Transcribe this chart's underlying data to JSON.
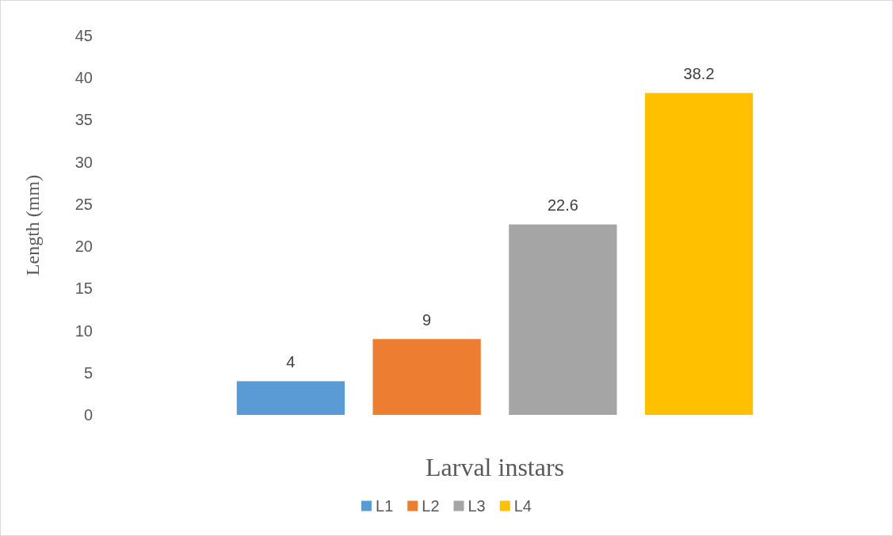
{
  "chart_data": {
    "type": "bar",
    "xlabel": "Larval instars",
    "ylabel": "Length (mm)",
    "categories": [
      null
    ],
    "series": [
      {
        "name": "L1",
        "color": "#5b9bd5",
        "values": [
          4
        ]
      },
      {
        "name": "L2",
        "color": "#ed7d31",
        "values": [
          9
        ]
      },
      {
        "name": "L3",
        "color": "#a5a5a5",
        "values": [
          22.6
        ]
      },
      {
        "name": "L4",
        "color": "#ffc000",
        "values": [
          38.2
        ]
      }
    ],
    "ylim": [
      0,
      45
    ],
    "yticks": [
      0,
      5,
      10,
      15,
      20,
      25,
      30,
      35,
      40,
      45
    ],
    "grid": false,
    "legend": "bottom",
    "data_labels": true
  }
}
